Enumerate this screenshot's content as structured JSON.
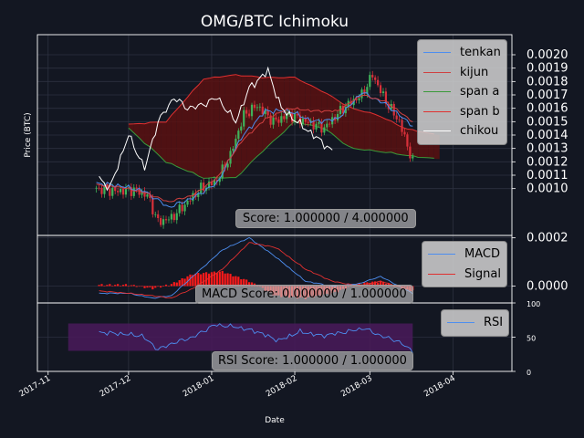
{
  "chart_data": [
    {
      "type": "line",
      "panel": "price",
      "title": "OMG/BTC Ichimoku",
      "ylabel": "Price (BTC)",
      "ylim": [
        0.00065,
        0.00215
      ],
      "yticks": [
        "0.0010",
        "0.0011",
        "0.0012",
        "0.0013",
        "0.0014",
        "0.0015",
        "0.0016",
        "0.0017",
        "0.0018",
        "0.0019",
        "0.0020"
      ],
      "xrange": [
        "2017-10-28",
        "2018-04-23"
      ],
      "grid": true,
      "legend_position": "top-right",
      "series": [
        {
          "name": "tenkan",
          "color": "#4d8ef0"
        },
        {
          "name": "kijun",
          "color": "#d04040"
        },
        {
          "name": "span a",
          "color": "#3a9a3a"
        },
        {
          "name": "span b",
          "color": "#e03030"
        },
        {
          "name": "chikou",
          "color": "#ffffff"
        }
      ],
      "candles_close": {
        "dates": [
          "2017-11-19",
          "2017-11-26",
          "2017-12-03",
          "2017-12-08",
          "2017-12-12",
          "2017-12-17",
          "2017-12-22",
          "2017-12-28",
          "2018-01-03",
          "2018-01-08",
          "2018-01-13",
          "2018-01-18",
          "2018-01-24",
          "2018-01-30",
          "2018-02-05",
          "2018-02-12",
          "2018-02-19",
          "2018-02-26",
          "2018-03-02",
          "2018-03-07",
          "2018-03-12",
          "2018-03-17"
        ],
        "values": [
          0.001,
          0.00098,
          0.00099,
          0.00095,
          0.00075,
          0.00078,
          0.00088,
          0.001,
          0.00106,
          0.00125,
          0.00155,
          0.00162,
          0.0015,
          0.00155,
          0.0015,
          0.00145,
          0.0016,
          0.0017,
          0.00185,
          0.00165,
          0.0015,
          0.0012
        ]
      },
      "ichimoku": {
        "dates": [
          "2017-11-19",
          "2017-11-28",
          "2017-12-07",
          "2017-12-16",
          "2017-12-25",
          "2018-01-03",
          "2018-01-12",
          "2018-01-21",
          "2018-01-30",
          "2018-02-08",
          "2018-02-17",
          "2018-02-26",
          "2018-03-07",
          "2018-03-17"
        ],
        "tenkan": [
          0.00104,
          0.00102,
          0.00098,
          0.00086,
          0.00093,
          0.00104,
          0.00138,
          0.00158,
          0.00158,
          0.0015,
          0.00152,
          0.00172,
          0.00163,
          0.00147
        ],
        "kijun": [
          0.00103,
          0.00101,
          0.00097,
          0.0009,
          0.00095,
          0.00108,
          0.00135,
          0.00152,
          0.0016,
          0.00158,
          0.00158,
          0.0017,
          0.00165,
          0.0015
        ]
      },
      "cloud": {
        "dates": [
          "2017-12-01",
          "2017-12-15",
          "2017-12-29",
          "2018-01-10",
          "2018-01-20",
          "2018-02-01",
          "2018-02-12",
          "2018-02-22",
          "2018-03-04",
          "2018-03-14",
          "2018-03-26"
        ],
        "span_a": [
          0.00145,
          0.0012,
          0.00108,
          0.00108,
          0.00128,
          0.0015,
          0.00145,
          0.0013,
          0.00128,
          0.00125,
          0.00122
        ],
        "span_b": [
          0.00148,
          0.0015,
          0.00182,
          0.00185,
          0.00183,
          0.00183,
          0.00172,
          0.0016,
          0.00155,
          0.00145,
          0.0014
        ]
      },
      "chikou": {
        "dates": [
          "2017-11-20",
          "2017-11-24",
          "2017-12-01",
          "2017-12-07",
          "2017-12-12",
          "2017-12-18",
          "2017-12-23",
          "2017-12-28",
          "2018-01-03",
          "2018-01-10",
          "2018-01-15",
          "2018-01-22",
          "2018-01-27",
          "2018-02-03",
          "2018-02-08",
          "2018-02-15"
        ],
        "values": [
          0.00108,
          0.001,
          0.0014,
          0.00115,
          0.0015,
          0.00168,
          0.0016,
          0.00162,
          0.00168,
          0.0015,
          0.00175,
          0.00188,
          0.0016,
          0.00148,
          0.0014,
          0.00128
        ]
      },
      "annotation": "Score: 1.000000 / 4.000000"
    },
    {
      "type": "line",
      "panel": "macd",
      "ylim": [
        -7e-05,
        0.00021
      ],
      "yticks": [
        "0.0002",
        "0.0000"
      ],
      "grid": true,
      "legend_position": "top-right",
      "series": [
        {
          "name": "MACD",
          "color": "#4d8ef0",
          "dates": [
            "2017-11-20",
            "2017-12-01",
            "2017-12-10",
            "2017-12-17",
            "2017-12-25",
            "2018-01-05",
            "2018-01-15",
            "2018-01-25",
            "2018-02-05",
            "2018-02-15",
            "2018-02-25",
            "2018-03-05",
            "2018-03-17"
          ],
          "values": [
            -3e-05,
            -3e-05,
            -5e-05,
            -4e-05,
            4e-05,
            0.00015,
            0.0002,
            0.00012,
            2e-05,
            0.0,
            1e-05,
            4e-05,
            -3e-05
          ]
        },
        {
          "name": "Signal",
          "color": "#e03030",
          "dates": [
            "2017-11-20",
            "2017-12-01",
            "2017-12-10",
            "2017-12-17",
            "2017-12-25",
            "2018-01-05",
            "2018-01-15",
            "2018-01-25",
            "2018-02-05",
            "2018-02-15",
            "2018-02-25",
            "2018-03-05",
            "2018-03-17"
          ],
          "values": [
            -2e-05,
            -3e-05,
            -4e-05,
            -5e-05,
            -1e-05,
            7e-05,
            0.00018,
            0.00016,
            7e-05,
            2e-05,
            0.0,
            2e-05,
            -2e-05
          ]
        }
      ],
      "histogram": {
        "name": "histogram",
        "color": "#ff1a1a",
        "dates": [
          "2017-11-20",
          "2017-12-01",
          "2017-12-10",
          "2017-12-17",
          "2017-12-25",
          "2018-01-05",
          "2018-01-15",
          "2018-01-25",
          "2018-02-05",
          "2018-02-15",
          "2018-02-25",
          "2018-03-05",
          "2018-03-17"
        ],
        "values": [
          5e-06,
          5e-06,
          -1e-05,
          8e-06,
          5e-05,
          6e-05,
          2e-05,
          -4e-05,
          -5e-05,
          -3e-05,
          1e-05,
          2e-05,
          -2e-05
        ]
      },
      "annotation": "MACD Score: 0.000000 / 1.000000"
    },
    {
      "type": "line",
      "panel": "rsi",
      "xlabel": "Date",
      "ylim": [
        0,
        100
      ],
      "yticks": [
        "100",
        "50",
        "0"
      ],
      "xticks": [
        "2017-11",
        "2017-12",
        "2018-01",
        "2018-02",
        "2018-03",
        "2018-04"
      ],
      "grid": true,
      "legend_position": "top-right",
      "band": {
        "low": 30,
        "high": 70,
        "from": "2017-11-01",
        "to": "2018-03-17",
        "color": "#4a1a5a"
      },
      "series": [
        {
          "name": "RSI",
          "color": "#4d8ef0",
          "dates": [
            "2017-11-20",
            "2017-11-28",
            "2017-12-06",
            "2017-12-12",
            "2017-12-18",
            "2017-12-25",
            "2018-01-02",
            "2018-01-10",
            "2018-01-18",
            "2018-01-26",
            "2018-02-03",
            "2018-02-11",
            "2018-02-19",
            "2018-02-27",
            "2018-03-05",
            "2018-03-11",
            "2018-03-17"
          ],
          "values": [
            57,
            55,
            52,
            32,
            42,
            50,
            68,
            65,
            58,
            45,
            58,
            52,
            57,
            63,
            52,
            45,
            30
          ]
        }
      ],
      "annotation": "RSI Score: 1.000000 / 1.000000"
    }
  ]
}
